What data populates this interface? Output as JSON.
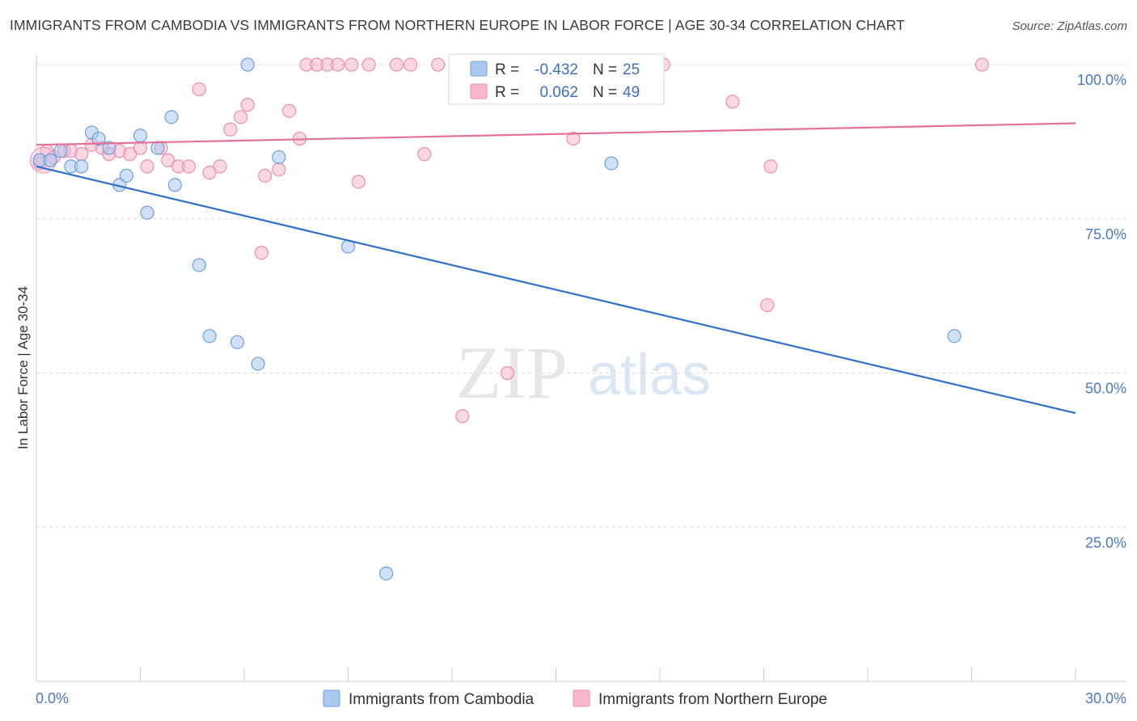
{
  "title": "IMMIGRANTS FROM CAMBODIA VS IMMIGRANTS FROM NORTHERN EUROPE IN LABOR FORCE | AGE 30-34 CORRELATION CHART",
  "source": "Source: ZipAtlas.com",
  "watermark": {
    "zip": "ZIP",
    "atlas": "atlas"
  },
  "colors": {
    "blue_fill": "#aac8f0",
    "blue_stroke": "#6f9fdc",
    "blue_line": "#2f6fcf",
    "pink_fill": "#f6b8cc",
    "pink_stroke": "#ec8fac",
    "pink_line": "#e4709a",
    "tick_text": "#4a78c2",
    "grid": "#dddddd"
  },
  "legend": {
    "rows": [
      {
        "r_label": "R =",
        "r_value": "-0.432",
        "n_label": "N =",
        "n_value": "25"
      },
      {
        "r_label": "R =",
        "r_value": "0.062",
        "n_label": "N =",
        "n_value": "49"
      }
    ]
  },
  "chart_data": {
    "type": "scatter",
    "title": "IMMIGRANTS FROM CAMBODIA VS IMMIGRANTS FROM NORTHERN EUROPE IN LABOR FORCE | AGE 30-34 CORRELATION CHART",
    "xlabel": "",
    "ylabel": "In Labor Force | Age 30-34",
    "xlim": [
      0,
      30
    ],
    "ylim": [
      0,
      105
    ],
    "x_tick_labels": [
      {
        "value": 0,
        "label": "0.0%"
      },
      {
        "value": 30,
        "label": "30.0%"
      }
    ],
    "y_tick_labels": [
      {
        "value": 25,
        "label": "25.0%"
      },
      {
        "value": 50,
        "label": "50.0%"
      },
      {
        "value": 75,
        "label": "75.0%"
      },
      {
        "value": 100,
        "label": "100.0%"
      }
    ],
    "grid": true,
    "legend_position": "top-center",
    "series": [
      {
        "name": "Immigrants from Cambodia",
        "color": "#aac8f0",
        "trend": {
          "x": [
            0,
            30
          ],
          "y": [
            83.5,
            43.5
          ]
        },
        "points": [
          {
            "x": 0.1,
            "y": 84.5
          },
          {
            "x": 0.4,
            "y": 84.5
          },
          {
            "x": 0.7,
            "y": 86
          },
          {
            "x": 1.0,
            "y": 83.5
          },
          {
            "x": 1.3,
            "y": 83.5
          },
          {
            "x": 1.6,
            "y": 89
          },
          {
            "x": 1.8,
            "y": 88
          },
          {
            "x": 2.1,
            "y": 86.5
          },
          {
            "x": 2.4,
            "y": 80.5
          },
          {
            "x": 2.6,
            "y": 82
          },
          {
            "x": 3.0,
            "y": 88.5
          },
          {
            "x": 3.2,
            "y": 76
          },
          {
            "x": 3.5,
            "y": 86.5
          },
          {
            "x": 3.9,
            "y": 91.5
          },
          {
            "x": 4.0,
            "y": 80.5
          },
          {
            "x": 4.7,
            "y": 67.5
          },
          {
            "x": 5.0,
            "y": 56
          },
          {
            "x": 5.8,
            "y": 55
          },
          {
            "x": 6.1,
            "y": 100
          },
          {
            "x": 6.4,
            "y": 51.5
          },
          {
            "x": 7.0,
            "y": 85
          },
          {
            "x": 9.0,
            "y": 70.5
          },
          {
            "x": 10.1,
            "y": 17.5
          },
          {
            "x": 16.6,
            "y": 84
          },
          {
            "x": 26.5,
            "y": 56
          }
        ]
      },
      {
        "name": "Immigrants from Northern Europe",
        "color": "#f6b8cc",
        "trend": {
          "x": [
            0,
            30
          ],
          "y": [
            87,
            90.5
          ]
        },
        "points": [
          {
            "x": 0.1,
            "y": 84
          },
          {
            "x": 0.3,
            "y": 86
          },
          {
            "x": 0.5,
            "y": 85
          },
          {
            "x": 0.8,
            "y": 86
          },
          {
            "x": 1.0,
            "y": 86
          },
          {
            "x": 1.3,
            "y": 85.5
          },
          {
            "x": 1.6,
            "y": 87
          },
          {
            "x": 1.9,
            "y": 86.5
          },
          {
            "x": 2.1,
            "y": 85.5
          },
          {
            "x": 2.4,
            "y": 86
          },
          {
            "x": 2.7,
            "y": 85.5
          },
          {
            "x": 3.0,
            "y": 86.5
          },
          {
            "x": 3.2,
            "y": 83.5
          },
          {
            "x": 3.6,
            "y": 86.5
          },
          {
            "x": 3.8,
            "y": 84.5
          },
          {
            "x": 4.1,
            "y": 83.5
          },
          {
            "x": 4.4,
            "y": 83.5
          },
          {
            "x": 4.7,
            "y": 96
          },
          {
            "x": 5.0,
            "y": 82.5
          },
          {
            "x": 5.3,
            "y": 83.5
          },
          {
            "x": 5.6,
            "y": 89.5
          },
          {
            "x": 5.9,
            "y": 91.5
          },
          {
            "x": 6.1,
            "y": 93.5
          },
          {
            "x": 6.5,
            "y": 69.5
          },
          {
            "x": 6.6,
            "y": 82
          },
          {
            "x": 7.0,
            "y": 83
          },
          {
            "x": 7.3,
            "y": 92.5
          },
          {
            "x": 7.6,
            "y": 88
          },
          {
            "x": 7.8,
            "y": 100
          },
          {
            "x": 8.1,
            "y": 100
          },
          {
            "x": 8.4,
            "y": 100
          },
          {
            "x": 8.7,
            "y": 100
          },
          {
            "x": 9.1,
            "y": 100
          },
          {
            "x": 9.3,
            "y": 81
          },
          {
            "x": 9.6,
            "y": 100
          },
          {
            "x": 10.4,
            "y": 100
          },
          {
            "x": 10.8,
            "y": 100
          },
          {
            "x": 11.2,
            "y": 85.5
          },
          {
            "x": 11.6,
            "y": 100
          },
          {
            "x": 12.3,
            "y": 43
          },
          {
            "x": 13.6,
            "y": 50
          },
          {
            "x": 14.0,
            "y": 100
          },
          {
            "x": 15.5,
            "y": 88
          },
          {
            "x": 16.1,
            "y": 100
          },
          {
            "x": 18.1,
            "y": 100
          },
          {
            "x": 20.1,
            "y": 94
          },
          {
            "x": 21.1,
            "y": 61
          },
          {
            "x": 21.2,
            "y": 83.5
          },
          {
            "x": 27.3,
            "y": 100
          }
        ]
      }
    ]
  }
}
